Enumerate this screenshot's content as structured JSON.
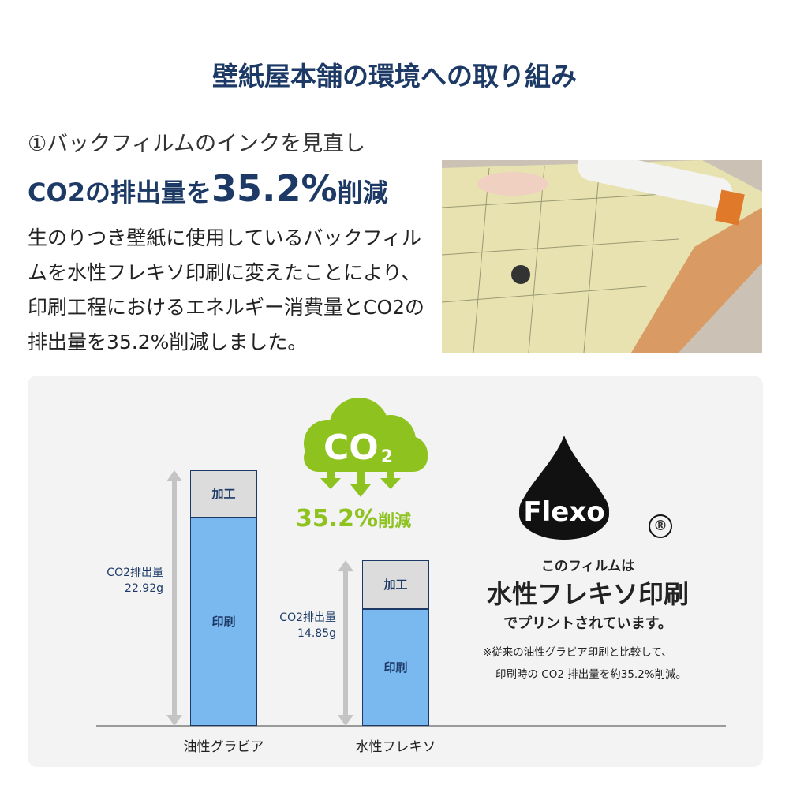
{
  "title": "壁紙屋本舗の環境への取り組み",
  "section": {
    "subtitle": "①バックフィルムのインクを見直し",
    "headline_pre": "CO2の排出量を",
    "headline_value": "35.2%",
    "headline_post": "削減",
    "body": "生のりつき壁紙に使用しているバックフィルムを水性フレキソ印刷に変えたことにより、印刷工程におけるエネルギー消費量とCO2の排出量を35.2%削減しました。"
  },
  "badge": {
    "cloud_text": "CO",
    "cloud_sub": "2",
    "reduction": "35.2%",
    "reduction_suffix": "削減",
    "color": "#8dc21f"
  },
  "flexo": {
    "logo_text": "Flexo",
    "registered": "®",
    "line1": "このフィルムは",
    "line2": "水性フレキソ印刷",
    "line3": "でプリントされています。",
    "note1": "※従来の油性グラビア印刷と比較して、",
    "note2": "印刷時の CO2 排出量を約35.2%削減。"
  },
  "chart_data": {
    "type": "bar",
    "stacked": true,
    "categories": [
      "油性グラビア",
      "水性フレキソ"
    ],
    "totals_labels": [
      "CO2排出量\n22.92g",
      "CO2排出量\n14.85g"
    ],
    "totals": [
      22.92,
      14.85
    ],
    "series": [
      {
        "name": "印刷",
        "values": [
          18.7,
          10.5
        ],
        "color": "#7ab8f0"
      },
      {
        "name": "加工",
        "values": [
          4.2,
          4.35
        ],
        "color": "#dcdcdc"
      }
    ],
    "grid": false
  }
}
